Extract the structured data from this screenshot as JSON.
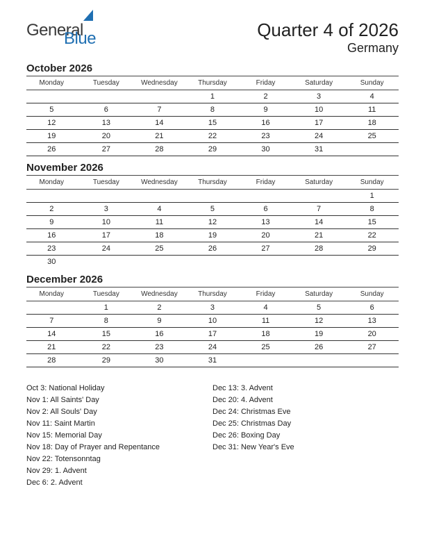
{
  "header": {
    "logo_text1": "General",
    "logo_text2": "Blue",
    "title": "Quarter 4 of 2026",
    "subtitle": "Germany"
  },
  "colors": {
    "holiday": "#c02020",
    "text": "#222222",
    "rule": "#333333",
    "logo_blue": "#1f6fb2",
    "background": "#ffffff"
  },
  "weekdays": [
    "Monday",
    "Tuesday",
    "Wednesday",
    "Thursday",
    "Friday",
    "Saturday",
    "Sunday"
  ],
  "months": [
    {
      "title": "October 2026",
      "weeks": [
        [
          {
            "d": ""
          },
          {
            "d": ""
          },
          {
            "d": ""
          },
          {
            "d": "1"
          },
          {
            "d": "2"
          },
          {
            "d": "3",
            "h": true
          },
          {
            "d": "4"
          }
        ],
        [
          {
            "d": "5"
          },
          {
            "d": "6"
          },
          {
            "d": "7"
          },
          {
            "d": "8"
          },
          {
            "d": "9"
          },
          {
            "d": "10"
          },
          {
            "d": "11"
          }
        ],
        [
          {
            "d": "12"
          },
          {
            "d": "13"
          },
          {
            "d": "14"
          },
          {
            "d": "15"
          },
          {
            "d": "16"
          },
          {
            "d": "17"
          },
          {
            "d": "18"
          }
        ],
        [
          {
            "d": "19"
          },
          {
            "d": "20"
          },
          {
            "d": "21"
          },
          {
            "d": "22"
          },
          {
            "d": "23"
          },
          {
            "d": "24"
          },
          {
            "d": "25"
          }
        ],
        [
          {
            "d": "26"
          },
          {
            "d": "27"
          },
          {
            "d": "28"
          },
          {
            "d": "29"
          },
          {
            "d": "30"
          },
          {
            "d": "31"
          },
          {
            "d": ""
          }
        ]
      ]
    },
    {
      "title": "November 2026",
      "weeks": [
        [
          {
            "d": ""
          },
          {
            "d": ""
          },
          {
            "d": ""
          },
          {
            "d": ""
          },
          {
            "d": ""
          },
          {
            "d": ""
          },
          {
            "d": "1",
            "h": true
          }
        ],
        [
          {
            "d": "2",
            "h": true
          },
          {
            "d": "3"
          },
          {
            "d": "4"
          },
          {
            "d": "5"
          },
          {
            "d": "6"
          },
          {
            "d": "7"
          },
          {
            "d": "8"
          }
        ],
        [
          {
            "d": "9"
          },
          {
            "d": "10"
          },
          {
            "d": "11",
            "h": true
          },
          {
            "d": "12"
          },
          {
            "d": "13"
          },
          {
            "d": "14"
          },
          {
            "d": "15",
            "h": true
          }
        ],
        [
          {
            "d": "16"
          },
          {
            "d": "17"
          },
          {
            "d": "18",
            "h": true
          },
          {
            "d": "19"
          },
          {
            "d": "20"
          },
          {
            "d": "21"
          },
          {
            "d": "22",
            "h": true
          }
        ],
        [
          {
            "d": "23"
          },
          {
            "d": "24"
          },
          {
            "d": "25"
          },
          {
            "d": "26"
          },
          {
            "d": "27"
          },
          {
            "d": "28"
          },
          {
            "d": "29",
            "h": true
          }
        ],
        [
          {
            "d": "30"
          },
          {
            "d": ""
          },
          {
            "d": ""
          },
          {
            "d": ""
          },
          {
            "d": ""
          },
          {
            "d": ""
          },
          {
            "d": ""
          }
        ]
      ],
      "last_row_noborder": true
    },
    {
      "title": "December 2026",
      "weeks": [
        [
          {
            "d": ""
          },
          {
            "d": "1"
          },
          {
            "d": "2"
          },
          {
            "d": "3"
          },
          {
            "d": "4"
          },
          {
            "d": "5"
          },
          {
            "d": "6",
            "h": true
          }
        ],
        [
          {
            "d": "7"
          },
          {
            "d": "8"
          },
          {
            "d": "9"
          },
          {
            "d": "10"
          },
          {
            "d": "11"
          },
          {
            "d": "12"
          },
          {
            "d": "13",
            "h": true
          }
        ],
        [
          {
            "d": "14"
          },
          {
            "d": "15"
          },
          {
            "d": "16"
          },
          {
            "d": "17"
          },
          {
            "d": "18"
          },
          {
            "d": "19"
          },
          {
            "d": "20",
            "h": true
          }
        ],
        [
          {
            "d": "21"
          },
          {
            "d": "22"
          },
          {
            "d": "23"
          },
          {
            "d": "24",
            "h": true
          },
          {
            "d": "25",
            "h": true
          },
          {
            "d": "26",
            "h": true
          },
          {
            "d": "27"
          }
        ],
        [
          {
            "d": "28"
          },
          {
            "d": "29"
          },
          {
            "d": "30"
          },
          {
            "d": "31",
            "h": true
          },
          {
            "d": ""
          },
          {
            "d": ""
          },
          {
            "d": ""
          }
        ]
      ]
    }
  ],
  "holidays_left": [
    "Oct 3: National Holiday",
    "Nov 1: All Saints' Day",
    "Nov 2: All Souls' Day",
    "Nov 11: Saint Martin",
    "Nov 15: Memorial Day",
    "Nov 18: Day of Prayer and Repentance",
    "Nov 22: Totensonntag",
    "Nov 29: 1. Advent",
    "Dec 6: 2. Advent"
  ],
  "holidays_right": [
    "Dec 13: 3. Advent",
    "Dec 20: 4. Advent",
    "Dec 24: Christmas Eve",
    "Dec 25: Christmas Day",
    "Dec 26: Boxing Day",
    "Dec 31: New Year's Eve"
  ]
}
